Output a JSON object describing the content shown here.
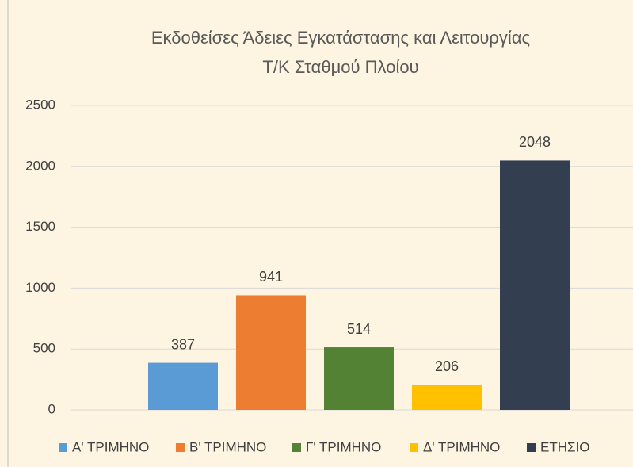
{
  "chart_data": {
    "type": "bar",
    "title": [
      "Εκδοθείσες Άδειες Εγκατάστασης και Λειτουργίας",
      "Τ/Κ Σταθμού Πλοίου"
    ],
    "series": [
      {
        "name": "Α' ΤΡΙΜΗΝΟ",
        "color": "#5b9bd5",
        "values": [
          387
        ]
      },
      {
        "name": "Β' ΤΡΙΜΗΝΟ",
        "color": "#ed7d31",
        "values": [
          941
        ]
      },
      {
        "name": "Γ' ΤΡΙΜΗΝΟ",
        "color": "#548235",
        "values": [
          514
        ]
      },
      {
        "name": "Δ' ΤΡΙΜΗΝΟ",
        "color": "#ffc000",
        "values": [
          206
        ]
      },
      {
        "name": "ΕΤΗΣΙΟ",
        "color": "#333f50",
        "values": [
          2048
        ]
      }
    ],
    "ylim": [
      0,
      2500
    ],
    "yticks": [
      0,
      500,
      1000,
      1500,
      2000,
      2500
    ],
    "grid": true,
    "legend": "bottom"
  }
}
